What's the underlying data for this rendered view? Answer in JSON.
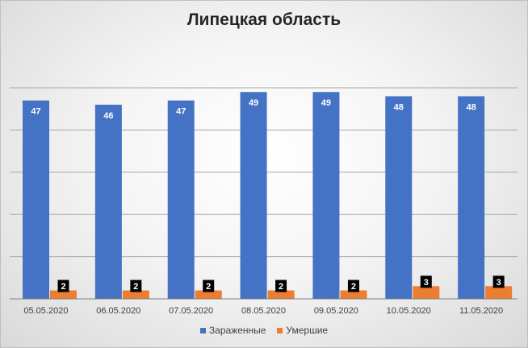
{
  "chart_data": {
    "type": "bar",
    "title": "Липецкая область",
    "categories": [
      "05.05.2020",
      "06.05.2020",
      "07.05.2020",
      "08.05.2020",
      "09.05.2020",
      "10.05.2020",
      "11.05.2020"
    ],
    "series": [
      {
        "name": "Зараженные",
        "color": "#4472c4",
        "values": [
          47,
          46,
          47,
          49,
          49,
          48,
          48
        ]
      },
      {
        "name": "Умершие",
        "color": "#ed7d31",
        "values": [
          2,
          2,
          2,
          2,
          2,
          3,
          3
        ]
      }
    ],
    "ylim": [
      0,
      50
    ],
    "grid": true,
    "legend": "bottom"
  }
}
